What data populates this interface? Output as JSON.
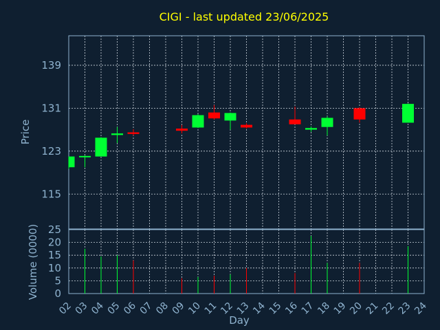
{
  "colors": {
    "background": "#0f1f30",
    "title": "#ffff00",
    "axis_text": "#8fb3cf",
    "up": "#00ff33",
    "down": "#ff0000",
    "grid": "#cfd8e0"
  },
  "chart_data": [
    {
      "type": "candlestick",
      "title": "CIGI - last updated 23/06/2025",
      "ylabel": "Price",
      "ylim": [
        108.5,
        144.5
      ],
      "yticks": [
        115,
        123,
        131,
        139
      ],
      "grid": true,
      "candles": [
        {
          "day": "02",
          "open": 120.0,
          "high": 122.0,
          "low": 119.7,
          "close": 122.0
        },
        {
          "day": "03",
          "open": 121.9,
          "high": 122.2,
          "low": 120.0,
          "close": 122.1
        },
        {
          "day": "04",
          "open": 122.0,
          "high": 125.6,
          "low": 122.0,
          "close": 125.5
        },
        {
          "day": "05",
          "open": 126.0,
          "high": 127.5,
          "low": 124.5,
          "close": 126.3
        },
        {
          "day": "06",
          "open": 126.5,
          "high": 127.1,
          "low": 125.9,
          "close": 126.2
        },
        {
          "day": "09",
          "open": 127.2,
          "high": 127.9,
          "low": 126.3,
          "close": 126.8
        },
        {
          "day": "10",
          "open": 127.4,
          "high": 129.9,
          "low": 127.3,
          "close": 129.7
        },
        {
          "day": "11",
          "open": 130.2,
          "high": 131.6,
          "low": 128.9,
          "close": 129.1
        },
        {
          "day": "12",
          "open": 128.7,
          "high": 130.2,
          "low": 127.0,
          "close": 130.1
        },
        {
          "day": "13",
          "open": 127.9,
          "high": 128.2,
          "low": 127.2,
          "close": 127.4
        },
        {
          "day": "16",
          "open": 128.9,
          "high": 131.3,
          "low": 128.0,
          "close": 128.0
        },
        {
          "day": "17",
          "open": 127.0,
          "high": 127.6,
          "low": 126.6,
          "close": 127.3
        },
        {
          "day": "18",
          "open": 127.5,
          "high": 129.5,
          "low": 125.9,
          "close": 129.2
        },
        {
          "day": "20",
          "open": 131.0,
          "high": 131.2,
          "low": 128.3,
          "close": 128.9
        },
        {
          "day": "23",
          "open": 128.3,
          "high": 131.9,
          "low": 128.3,
          "close": 131.8
        }
      ]
    },
    {
      "type": "bar",
      "ylabel": "Volume (0000)",
      "xlabel": "Day",
      "ylim": [
        0,
        25
      ],
      "yticks": [
        0,
        5,
        10,
        15,
        20,
        25
      ],
      "grid": true,
      "x_ticks": [
        "02",
        "03",
        "04",
        "05",
        "06",
        "07",
        "08",
        "09",
        "10",
        "11",
        "12",
        "13",
        "14",
        "15",
        "16",
        "17",
        "18",
        "19",
        "20",
        "21",
        "22",
        "23",
        "24"
      ],
      "bars": [
        {
          "day": "02",
          "value": 0
        },
        {
          "day": "03",
          "value": 17.5
        },
        {
          "day": "04",
          "value": 14.5
        },
        {
          "day": "05",
          "value": 15
        },
        {
          "day": "06",
          "value": 13
        },
        {
          "day": "09",
          "value": 6
        },
        {
          "day": "10",
          "value": 6.5
        },
        {
          "day": "11",
          "value": 7
        },
        {
          "day": "12",
          "value": 7.5
        },
        {
          "day": "13",
          "value": 10
        },
        {
          "day": "16",
          "value": 8
        },
        {
          "day": "17",
          "value": 22.5
        },
        {
          "day": "18",
          "value": 12
        },
        {
          "day": "20",
          "value": 12
        },
        {
          "day": "23",
          "value": 18.5
        }
      ]
    }
  ]
}
